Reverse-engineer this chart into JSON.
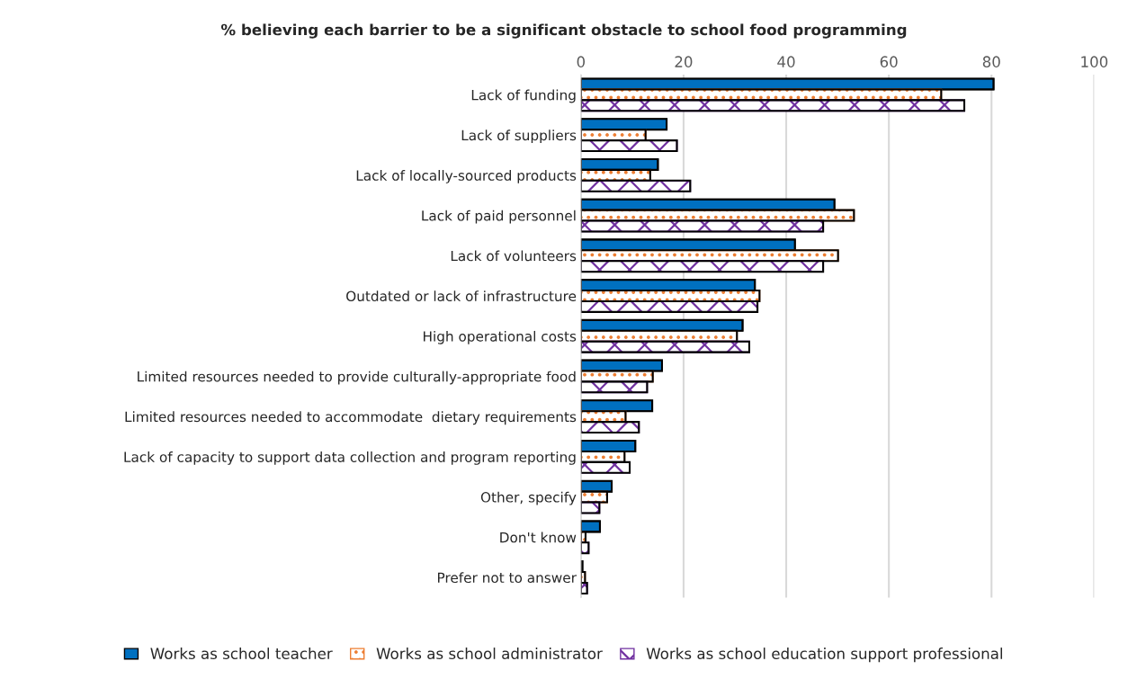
{
  "chart_data": {
    "type": "bar",
    "orientation": "horizontal",
    "title": "% believing each barrier to be a significant obstacle to school food programming",
    "categories": [
      "Lack of funding",
      "Lack of suppliers",
      "Lack of locally-sourced products",
      "Lack of paid personnel",
      "Lack of volunteers",
      "Outdated or lack of infrastructure",
      "High operational costs",
      "Limited resources needed to provide culturally-appropriate food",
      "Limited resources needed to accommodate  dietary requirements",
      "Lack of capacity to support data collection and program reporting",
      "Other, specify",
      "Don't know",
      "Prefer not to answer"
    ],
    "series": [
      {
        "name": "Works as school teacher",
        "color": "#0070c0",
        "values": [
          80.4,
          16.7,
          15.0,
          49.4,
          41.7,
          33.9,
          31.5,
          15.8,
          13.9,
          10.6,
          6.0,
          3.7,
          0.3
        ]
      },
      {
        "name": "Works as school administrator",
        "color": "#ed7d31",
        "values": [
          70.2,
          12.6,
          13.5,
          53.2,
          50.1,
          34.8,
          30.4,
          14.0,
          8.7,
          8.5,
          5.1,
          0.9,
          0.8
        ]
      },
      {
        "name": "Works as school education support professional",
        "color": "#7030a0",
        "values": [
          74.7,
          18.7,
          21.3,
          47.2,
          47.2,
          34.4,
          32.8,
          12.9,
          11.3,
          9.5,
          3.6,
          1.5,
          1.2
        ]
      }
    ],
    "xlim": [
      0,
      100
    ],
    "xticks": [
      0,
      20,
      40,
      60,
      80,
      100
    ],
    "grid": "x",
    "legend": "bottom"
  }
}
